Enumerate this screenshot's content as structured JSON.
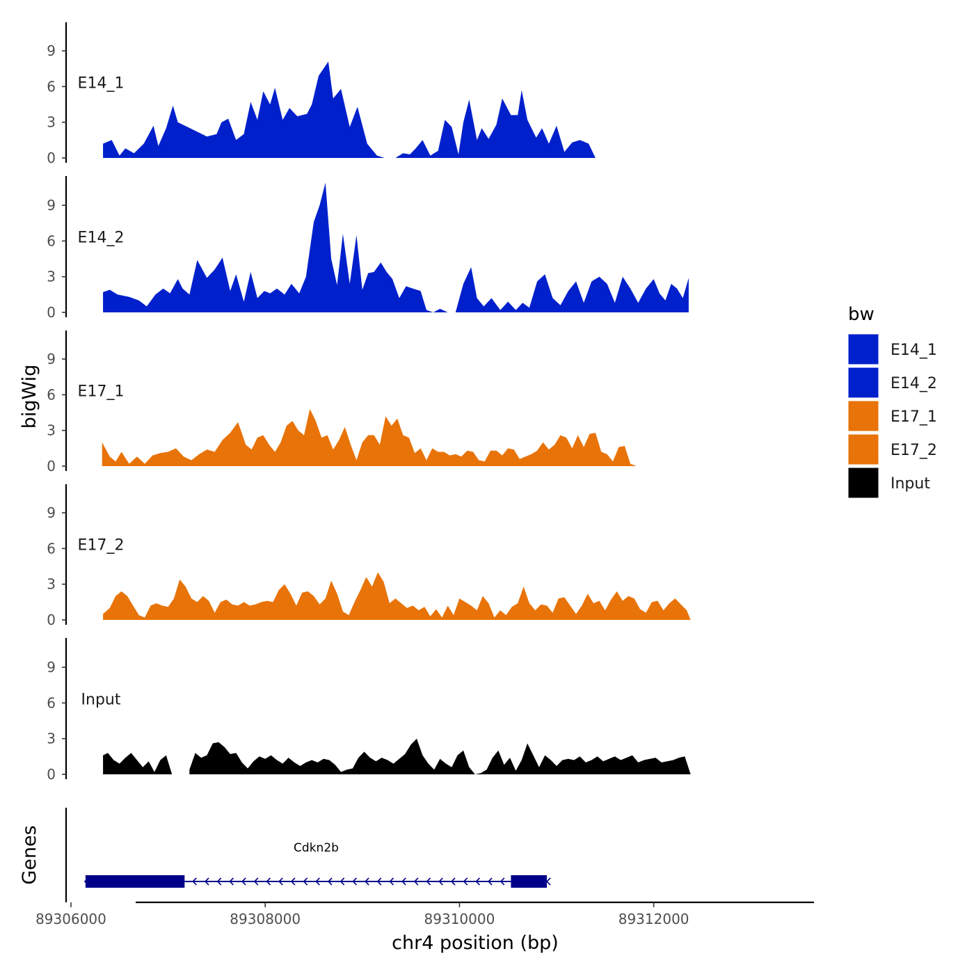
{
  "chart_data": {
    "type": "area",
    "x_axis": {
      "title": "chr4 position (bp)",
      "range": [
        89305950,
        89313650
      ],
      "ticks": [
        89306000,
        89308000,
        89310000,
        89312000
      ],
      "tick_labels": [
        "89306000",
        "89308000",
        "89310000",
        "89312000"
      ]
    },
    "y_axis": {
      "title": "bigWig",
      "range": [
        0,
        11.5
      ],
      "ticks": [
        0,
        3,
        6,
        9
      ],
      "tick_labels": [
        "0",
        "3",
        "6",
        "9"
      ]
    },
    "tracks": [
      {
        "name": "E14_1",
        "color": "#0020CC",
        "x": [
          89306330,
          89306420,
          89306500,
          89306560,
          89306650,
          89306750,
          89306850,
          89306900,
          89306980,
          89307050,
          89307100,
          89307200,
          89307300,
          89307400,
          89307500,
          89307550,
          89307620,
          89307700,
          89307780,
          89307850,
          89307920,
          89307980,
          89308050,
          89308100,
          89308180,
          89308250,
          89308330,
          89308430,
          89308480,
          89308550,
          89308650,
          89308700,
          89308780,
          89308870,
          89308950,
          89309050,
          89309150,
          89309230,
          89309290,
          89309340,
          89309420,
          89309490,
          89309550,
          89309620,
          89309700,
          89309780,
          89309850,
          89309920,
          89309990,
          89310040,
          89310100,
          89310180,
          89310230,
          89310300,
          89310380,
          89310440,
          89310530,
          89310600,
          89310640,
          89310700,
          89310790,
          89310850,
          89310920,
          89311000,
          89311080,
          89311160,
          89311240,
          89311330,
          89311400,
          89311480,
          89311550,
          89311640,
          89311720,
          89311800,
          89311900,
          89311980,
          89312040,
          89312100,
          89312180,
          89312240,
          89312320,
          89312380
        ],
        "y": [
          1.2,
          1.5,
          0.2,
          0.8,
          0.4,
          1.2,
          2.7,
          1.0,
          2.5,
          4.4,
          3.0,
          2.6,
          2.2,
          1.8,
          2.0,
          3.0,
          3.3,
          1.5,
          2.0,
          4.7,
          3.2,
          5.6,
          4.5,
          5.9,
          3.2,
          4.2,
          3.5,
          3.7,
          4.5,
          6.9,
          8.1,
          5.0,
          5.8,
          2.6,
          4.3,
          1.2,
          0.2,
          0,
          null,
          0,
          0.4,
          0.3,
          0.8,
          1.5,
          0.2,
          0.6,
          3.2,
          2.6,
          0.3,
          3.0,
          4.9,
          1.5,
          2.5,
          1.6,
          2.8,
          5.0,
          3.6,
          3.6,
          5.7,
          3.2,
          1.7,
          2.5,
          1.2,
          2.7,
          0.5,
          1.3,
          1.5,
          1.2,
          0,
          null,
          null,
          null,
          null,
          null,
          null,
          null,
          null,
          null,
          null,
          null,
          null,
          null
        ]
      },
      {
        "name": "E14_2",
        "color": "#0020CC",
        "x": [
          89306330,
          89306400,
          89306480,
          89306600,
          89306700,
          89306780,
          89306870,
          89306950,
          89307020,
          89307100,
          89307150,
          89307220,
          89307300,
          89307400,
          89307480,
          89307560,
          89307640,
          89307700,
          89307780,
          89307850,
          89307920,
          89307990,
          89308050,
          89308120,
          89308200,
          89308270,
          89308350,
          89308420,
          89308500,
          89308560,
          89308620,
          89308680,
          89308740,
          89308800,
          89308870,
          89308940,
          89309000,
          89309060,
          89309120,
          89309190,
          89309250,
          89309310,
          89309380,
          89309450,
          89309520,
          89309600,
          89309660,
          89309730,
          89309800,
          89309880,
          89309960,
          89310040,
          89310120,
          89310180,
          89310250,
          89310330,
          89310420,
          89310500,
          89310580,
          89310650,
          89310720,
          89310800,
          89310880,
          89310960,
          89311040,
          89311120,
          89311200,
          89311280,
          89311360,
          89311440,
          89311520,
          89311600,
          89311680,
          89311760,
          89311840,
          89311920,
          89312000,
          89312060,
          89312120,
          89312180,
          89312240,
          89312300,
          89312360
        ],
        "y": [
          1.7,
          1.9,
          1.5,
          1.3,
          1.0,
          0.5,
          1.5,
          2.0,
          1.6,
          2.8,
          2.0,
          1.5,
          4.4,
          2.9,
          3.6,
          4.6,
          1.8,
          3.2,
          0.9,
          3.4,
          1.2,
          1.8,
          1.6,
          2.0,
          1.5,
          2.4,
          1.6,
          3.0,
          7.6,
          9.0,
          10.9,
          4.5,
          2.3,
          6.6,
          2.4,
          6.5,
          1.9,
          3.3,
          3.4,
          4.2,
          3.4,
          2.8,
          1.2,
          2.2,
          2.0,
          1.8,
          0.2,
          0,
          0.3,
          0,
          0,
          2.4,
          3.8,
          1.2,
          0.5,
          1.2,
          0.2,
          0.9,
          0.2,
          0.8,
          0.4,
          2.6,
          3.2,
          1.2,
          0.6,
          1.8,
          2.6,
          0.8,
          2.6,
          3.0,
          2.4,
          0.8,
          3.0,
          2.0,
          0.8,
          2.0,
          2.8,
          1.6,
          1.0,
          2.4,
          2.0,
          1.2,
          2.9
        ]
      },
      {
        "name": "E17_1",
        "color": "#E87308",
        "x": [
          89306320,
          89306400,
          89306460,
          89306520,
          89306600,
          89306680,
          89306760,
          89306840,
          89306920,
          89307000,
          89307080,
          89307160,
          89307240,
          89307320,
          89307400,
          89307480,
          89307560,
          89307640,
          89307720,
          89307800,
          89307860,
          89307920,
          89307980,
          89308040,
          89308100,
          89308160,
          89308220,
          89308280,
          89308340,
          89308400,
          89308460,
          89308520,
          89308580,
          89308640,
          89308700,
          89308760,
          89308820,
          89308880,
          89308940,
          89309000,
          89309060,
          89309120,
          89309180,
          89309240,
          89309300,
          89309360,
          89309420,
          89309480,
          89309540,
          89309600,
          89309660,
          89309720,
          89309780,
          89309840,
          89309900,
          89309960,
          89310020,
          89310080,
          89310140,
          89310200,
          89310260,
          89310320,
          89310380,
          89310440,
          89310500,
          89310560,
          89310620,
          89310680,
          89310740,
          89310800,
          89310860,
          89310920,
          89310980,
          89311040,
          89311100,
          89311160,
          89311220,
          89311280,
          89311340,
          89311400,
          89311460,
          89311520,
          89311580,
          89311640,
          89311700,
          89311760,
          89311820,
          89311880,
          89311940,
          89312000,
          89312060,
          89312120,
          89312180,
          89312240,
          89312300
        ],
        "y": [
          2.0,
          0.8,
          0.4,
          1.2,
          0.2,
          0.8,
          0.2,
          0.9,
          1.1,
          1.2,
          1.5,
          0.8,
          0.5,
          1.0,
          1.4,
          1.2,
          2.2,
          2.8,
          3.7,
          1.8,
          1.4,
          2.4,
          2.6,
          1.8,
          1.2,
          2.0,
          3.4,
          3.8,
          3.0,
          2.6,
          4.8,
          3.8,
          2.4,
          2.6,
          1.4,
          2.2,
          3.3,
          1.8,
          0.5,
          2.0,
          2.6,
          2.6,
          1.8,
          4.2,
          3.4,
          4.0,
          2.6,
          2.4,
          1.1,
          1.5,
          0.5,
          1.5,
          1.2,
          1.2,
          0.9,
          1.0,
          0.8,
          1.3,
          1.2,
          0.5,
          0.4,
          1.3,
          1.3,
          0.9,
          1.5,
          1.4,
          0.6,
          0.8,
          1.0,
          1.3,
          2.0,
          1.4,
          1.8,
          2.6,
          2.4,
          1.5,
          2.6,
          1.6,
          2.7,
          2.8,
          1.2,
          1.0,
          0.4,
          1.6,
          1.7,
          0.2,
          0,
          null,
          null,
          null,
          null,
          null,
          null,
          null,
          null
        ]
      },
      {
        "name": "E17_2",
        "color": "#E87308",
        "x": [
          89306330,
          89306400,
          89306460,
          89306520,
          89306580,
          89306640,
          89306700,
          89306760,
          89306820,
          89306880,
          89306940,
          89307000,
          89307060,
          89307120,
          89307180,
          89307240,
          89307300,
          89307360,
          89307420,
          89307480,
          89307540,
          89307600,
          89307660,
          89307720,
          89307780,
          89307840,
          89307900,
          89307960,
          89308020,
          89308080,
          89308140,
          89308200,
          89308260,
          89308320,
          89308380,
          89308440,
          89308500,
          89308560,
          89308620,
          89308680,
          89308740,
          89308800,
          89308860,
          89308920,
          89308980,
          89309040,
          89309100,
          89309160,
          89309220,
          89309280,
          89309340,
          89309400,
          89309460,
          89309520,
          89309580,
          89309640,
          89309700,
          89309760,
          89309820,
          89309880,
          89309940,
          89310000,
          89310060,
          89310120,
          89310180,
          89310240,
          89310300,
          89310360,
          89310420,
          89310480,
          89310540,
          89310600,
          89310660,
          89310720,
          89310780,
          89310840,
          89310900,
          89310960,
          89311020,
          89311080,
          89311140,
          89311200,
          89311260,
          89311320,
          89311380,
          89311440,
          89311500,
          89311560,
          89311620,
          89311680,
          89311740,
          89311800,
          89311860,
          89311920,
          89311980,
          89312040,
          89312100,
          89312160,
          89312220,
          89312280,
          89312340,
          89312380
        ],
        "y": [
          0.5,
          1.0,
          2.0,
          2.4,
          2.0,
          1.2,
          0.4,
          0.2,
          1.2,
          1.4,
          1.2,
          1.1,
          1.8,
          3.4,
          2.8,
          1.8,
          1.5,
          2.0,
          1.6,
          0.6,
          1.5,
          1.7,
          1.3,
          1.2,
          1.5,
          1.2,
          1.3,
          1.5,
          1.6,
          1.5,
          2.5,
          3.0,
          2.2,
          1.2,
          2.3,
          2.4,
          2.0,
          1.3,
          1.8,
          3.3,
          2.2,
          0.7,
          0.4,
          1.5,
          2.5,
          3.6,
          2.8,
          4.0,
          3.2,
          1.4,
          1.8,
          1.4,
          1.0,
          1.2,
          0.8,
          1.1,
          0.3,
          0.9,
          0.2,
          1.2,
          0.4,
          1.8,
          1.5,
          1.2,
          0.8,
          2.0,
          1.4,
          0.2,
          0.8,
          0.4,
          1.1,
          1.4,
          2.8,
          1.4,
          0.8,
          1.3,
          1.2,
          0.6,
          1.8,
          1.9,
          1.2,
          0.5,
          1.2,
          2.2,
          1.4,
          1.6,
          0.8,
          1.7,
          2.4,
          1.6,
          2.0,
          1.8,
          0.9,
          0.6,
          1.5,
          1.6,
          0.8,
          1.4,
          1.8,
          1.3,
          0.8,
          0
        ]
      },
      {
        "name": "Input",
        "color": "#000000",
        "x": [
          89306330,
          89306380,
          89306440,
          89306500,
          89306560,
          89306620,
          89306680,
          89306740,
          89306800,
          89306860,
          89306920,
          89306980,
          89307040,
          89307100,
          89307160,
          89307220,
          89307280,
          89307340,
          89307400,
          89307460,
          89307520,
          89307580,
          89307640,
          89307700,
          89307760,
          89307820,
          89307880,
          89307940,
          89308000,
          89308060,
          89308120,
          89308180,
          89308240,
          89308300,
          89308360,
          89308420,
          89308480,
          89308540,
          89308600,
          89308660,
          89308720,
          89308780,
          89308840,
          89308900,
          89308960,
          89309020,
          89309080,
          89309140,
          89309200,
          89309260,
          89309320,
          89309380,
          89309440,
          89309500,
          89309560,
          89309620,
          89309680,
          89309740,
          89309800,
          89309860,
          89309920,
          89309980,
          89310040,
          89310100,
          89310160,
          89310220,
          89310280,
          89310340,
          89310400,
          89310460,
          89310520,
          89310580,
          89310640,
          89310700,
          89310760,
          89310820,
          89310880,
          89310940,
          89311000,
          89311060,
          89311120,
          89311180,
          89311240,
          89311300,
          89311360,
          89311420,
          89311480,
          89311540,
          89311600,
          89311660,
          89311720,
          89311780,
          89311840,
          89311900,
          89311960,
          89312020,
          89312080,
          89312140,
          89312200,
          89312260,
          89312320,
          89312380
        ],
        "y": [
          1.6,
          1.8,
          1.2,
          0.9,
          1.4,
          1.8,
          1.2,
          0.6,
          1.1,
          0.2,
          1.2,
          1.6,
          0,
          0,
          null,
          0.4,
          1.8,
          1.4,
          1.6,
          2.6,
          2.7,
          2.3,
          1.7,
          1.8,
          1.0,
          0.5,
          1.1,
          1.5,
          1.3,
          1.6,
          1.2,
          0.9,
          1.4,
          1.0,
          0.7,
          1.0,
          1.2,
          1.0,
          1.3,
          1.2,
          0.8,
          0.2,
          0.4,
          0.5,
          1.4,
          1.9,
          1.4,
          1.1,
          1.4,
          1.2,
          0.9,
          1.3,
          1.7,
          2.5,
          3.0,
          1.6,
          0.9,
          0.4,
          1.3,
          0.9,
          0.6,
          1.6,
          2.0,
          0.6,
          0,
          0.1,
          0.4,
          1.4,
          2.0,
          0.8,
          1.4,
          0.3,
          1.2,
          2.6,
          1.6,
          0.6,
          1.6,
          1.2,
          0.7,
          1.2,
          1.3,
          1.2,
          1.5,
          1.0,
          1.2,
          1.5,
          1.1,
          1.3,
          1.5,
          1.2,
          1.4,
          1.6,
          1.0,
          1.2,
          1.3,
          1.4,
          1.0,
          1.1,
          1.2,
          1.4,
          1.5,
          0
        ]
      }
    ],
    "genes_track": {
      "label": "Genes",
      "genes": [
        {
          "name": "Cdkn2b",
          "start": 89306150,
          "end": 89310900,
          "strand": "-",
          "exons": [
            [
              89306150,
              89307170
            ],
            [
              89310530,
              89310900
            ]
          ],
          "color": "#00008B"
        }
      ]
    },
    "legend": {
      "title": "bw",
      "position": "right",
      "entries": [
        {
          "label": "E14_1",
          "color": "#0020CC"
        },
        {
          "label": "E14_2",
          "color": "#0020CC"
        },
        {
          "label": "E17_1",
          "color": "#E87308"
        },
        {
          "label": "E17_2",
          "color": "#E87308"
        },
        {
          "label": "Input",
          "color": "#000000"
        }
      ]
    }
  }
}
